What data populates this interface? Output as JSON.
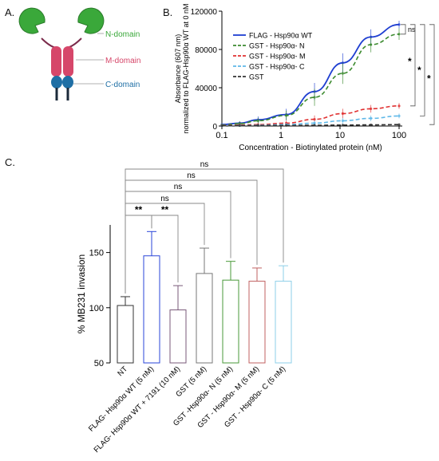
{
  "panels": {
    "a": "A.",
    "b": "B.",
    "c": "C."
  },
  "diagram": {
    "n_domain": "N-domain",
    "m_domain": "M-domain",
    "c_domain": "C-domain",
    "colors": {
      "n": "#3aa83a",
      "m": "#d6476a",
      "c": "#1f6fa5",
      "tail": "#1b2a3a"
    }
  },
  "chart_data": [
    {
      "type": "line",
      "panel": "B",
      "xlabel": "Concentration - Biotinylated protein (nM)",
      "ylabel_lines": [
        "Absorbance (607 nm)",
        "normalized  to FLAG-Hsp90α WT at 0 nM"
      ],
      "x_scale": "log",
      "xlim": [
        0.1,
        100
      ],
      "ylim": [
        0,
        120000
      ],
      "x_ticks": [
        0.1,
        1,
        10,
        100
      ],
      "x_tick_labels": [
        "0.1",
        "1",
        "10",
        "100"
      ],
      "y_ticks": [
        0,
        40000,
        80000,
        120000
      ],
      "y_tick_labels": [
        "0",
        "40000",
        "80000",
        "120000"
      ],
      "legend_position": "top-left",
      "x": [
        0.1,
        0.2,
        0.41,
        1.23,
        3.7,
        11.1,
        33.3,
        100
      ],
      "series": [
        {
          "name": "FLAG - Hsp90α WT",
          "color": "#1f3fd1",
          "dash": "solid",
          "values": [
            1500,
            3000,
            6500,
            12000,
            36000,
            66000,
            93000,
            106000
          ],
          "err": [
            1500,
            2000,
            3500,
            6000,
            9000,
            10000,
            8000,
            4000
          ]
        },
        {
          "name": "GST - Hsp90α- N",
          "color": "#3b8a2e",
          "dash": "dash",
          "values": [
            1000,
            2500,
            5500,
            11000,
            30000,
            55000,
            85000,
            96000
          ],
          "err": [
            1500,
            2000,
            3000,
            5000,
            9000,
            11000,
            8000,
            6000
          ]
        },
        {
          "name": "GST - Hsp90α- M",
          "color": "#e03030",
          "dash": "dash",
          "values": [
            500,
            1000,
            1500,
            3000,
            7000,
            13000,
            18000,
            21000
          ],
          "err": [
            800,
            1000,
            1500,
            2500,
            4000,
            5000,
            4000,
            3000
          ]
        },
        {
          "name": "GST - Hsp90α- C",
          "color": "#5fb8e8",
          "dash": "dash",
          "values": [
            300,
            500,
            800,
            1500,
            3000,
            5500,
            8000,
            10500
          ],
          "err": [
            500,
            800,
            1000,
            1500,
            2500,
            3000,
            3000,
            2500
          ]
        },
        {
          "name": "GST",
          "color": "#333333",
          "dash": "dash",
          "values": [
            300,
            400,
            500,
            600,
            800,
            1000,
            1200,
            1500
          ],
          "err": [
            400,
            400,
            500,
            500,
            600,
            600,
            700,
            800
          ]
        }
      ],
      "significance": [
        "ns",
        "*",
        "*",
        "*"
      ]
    },
    {
      "type": "bar",
      "panel": "C",
      "ylabel": "% MB231 invasion",
      "ylim": [
        50,
        175
      ],
      "y_ticks": [
        50,
        100,
        150
      ],
      "y_tick_labels": [
        "50",
        "100",
        "150"
      ],
      "categories": [
        "NT",
        "FLAG- Hsp90α WT (5 nM)",
        "FLAG- Hsp90α WT + 7191 (10 nM)",
        "GST (5 nM)",
        "GST -Hsp90α- N (5 nM)",
        "GST - Hsp90α- M (5 nM)",
        "GST - Hsp90α- C (5 nM)"
      ],
      "values": [
        102,
        147,
        98,
        131,
        125,
        124,
        124
      ],
      "err": [
        8,
        22,
        22,
        23,
        17,
        12,
        14
      ],
      "colors": [
        "#333333",
        "#2a45d8",
        "#7a5a7a",
        "#777777",
        "#4a9a3a",
        "#c06060",
        "#8ecfe8"
      ],
      "comparisons": [
        {
          "from": 0,
          "to": 1,
          "label": "**"
        },
        {
          "from": 1,
          "to": 2,
          "label": "**"
        },
        {
          "from": 0,
          "to": 3,
          "label": "ns"
        },
        {
          "from": 0,
          "to": 4,
          "label": "ns"
        },
        {
          "from": 0,
          "to": 5,
          "label": "ns"
        },
        {
          "from": 0,
          "to": 6,
          "label": "ns"
        }
      ]
    }
  ]
}
